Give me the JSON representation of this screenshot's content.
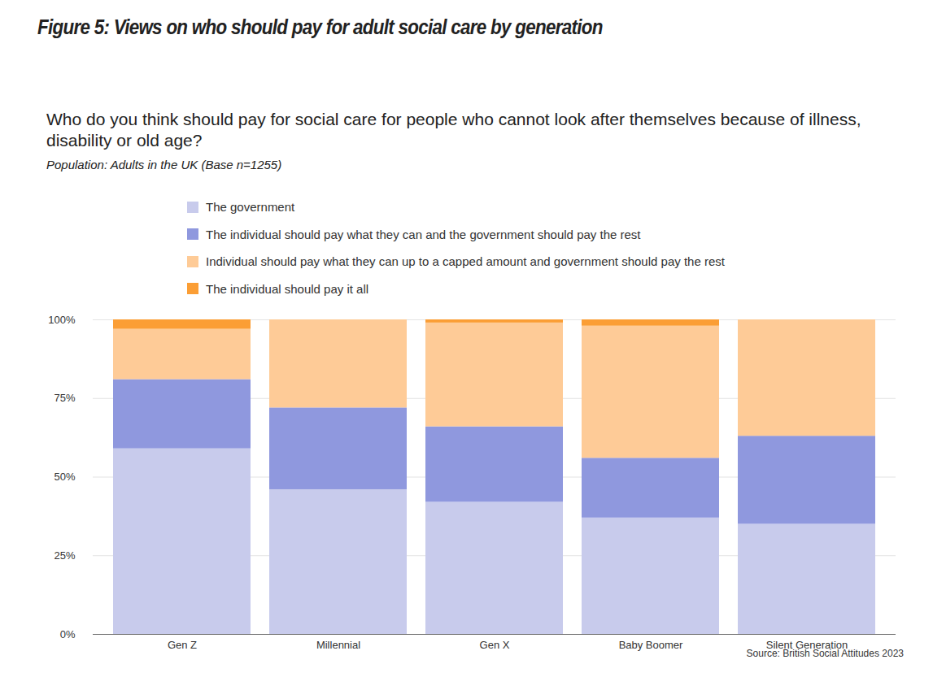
{
  "chart_data": {
    "type": "bar",
    "figure_title": "Figure 5: Views on who should pay for adult social care by generation",
    "title": "Who do you think should pay for social care for people who cannot look after themselves because of illness, disability or old age?",
    "subtitle": "Population: Adults in the UK (Base n=1255)",
    "source": "Source: British Social Attitudes 2023",
    "stacked": true,
    "grid": true,
    "legend": "top",
    "categories": [
      "Gen Z",
      "Millennial",
      "Gen X",
      "Baby Boomer",
      "Silent Generation"
    ],
    "series": [
      {
        "name": "The government",
        "color": "#c8cbec",
        "values": [
          59,
          46,
          42,
          37,
          35
        ]
      },
      {
        "name": "The individual should pay what they can and the government should pay the rest",
        "color": "#8f98de",
        "values": [
          22,
          26,
          24,
          19,
          28
        ]
      },
      {
        "name": "Individual should pay what they can up to a capped amount and government should pay the rest",
        "color": "#fecb97",
        "values": [
          16,
          28,
          33,
          42,
          37
        ]
      },
      {
        "name": "The individual should pay it all",
        "color": "#fb9e35",
        "values": [
          3,
          0,
          1,
          2,
          0
        ]
      }
    ],
    "ylim": [
      0,
      100
    ],
    "yticks": [
      {
        "value": 0,
        "label": "0%"
      },
      {
        "value": 25,
        "label": "25%"
      },
      {
        "value": 50,
        "label": "50%"
      },
      {
        "value": 75,
        "label": "75%"
      },
      {
        "value": 100,
        "label": "100%"
      }
    ]
  }
}
